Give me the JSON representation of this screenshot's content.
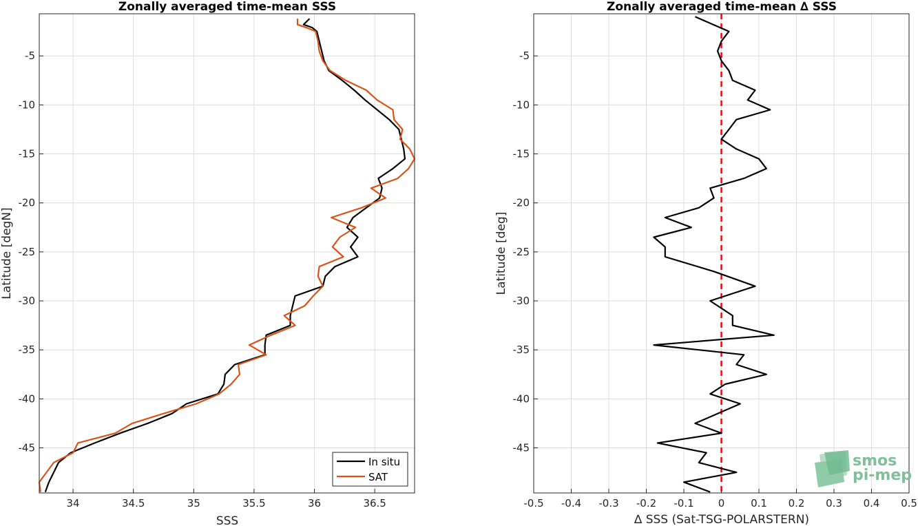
{
  "chart_data": [
    {
      "type": "line",
      "title": "Zonally averaged time-mean SSS",
      "xlabel": "SSS",
      "ylabel": "Latitude [degN]",
      "xlim": [
        33.72,
        36.83
      ],
      "ylim": [
        -49.6,
        -0.7
      ],
      "xticks": [
        "34",
        "34.5",
        "35",
        "35.5",
        "36",
        "36.5"
      ],
      "yticks": [
        "-5",
        "-10",
        "-15",
        "-20",
        "-25",
        "-30",
        "-35",
        "-40",
        "-45"
      ],
      "grid": true,
      "legend_position": "bottom-right",
      "series": [
        {
          "name": "In situ",
          "color": "#000000",
          "points": [
            [
              35.96,
              -1.2
            ],
            [
              35.91,
              -1.8
            ],
            [
              35.98,
              -2.1
            ],
            [
              36.02,
              -2.5
            ],
            [
              36.04,
              -3.5
            ],
            [
              36.06,
              -4.5
            ],
            [
              36.08,
              -5.5
            ],
            [
              36.12,
              -6.5
            ],
            [
              36.23,
              -7.5
            ],
            [
              36.33,
              -8.5
            ],
            [
              36.42,
              -9.5
            ],
            [
              36.52,
              -10.5
            ],
            [
              36.62,
              -11.5
            ],
            [
              36.7,
              -12.5
            ],
            [
              36.72,
              -13.5
            ],
            [
              36.74,
              -14.5
            ],
            [
              36.75,
              -15.5
            ],
            [
              36.65,
              -16.5
            ],
            [
              36.53,
              -17.5
            ],
            [
              36.56,
              -18.5
            ],
            [
              36.54,
              -19.5
            ],
            [
              36.43,
              -20.5
            ],
            [
              36.32,
              -21.5
            ],
            [
              36.27,
              -22.5
            ],
            [
              36.36,
              -23.5
            ],
            [
              36.3,
              -24.5
            ],
            [
              36.36,
              -25.5
            ],
            [
              36.17,
              -26.5
            ],
            [
              36.09,
              -27.5
            ],
            [
              36.07,
              -28.5
            ],
            [
              35.84,
              -29.5
            ],
            [
              35.82,
              -30.5
            ],
            [
              35.8,
              -31.5
            ],
            [
              35.8,
              -32.5
            ],
            [
              35.6,
              -33.5
            ],
            [
              35.59,
              -34.5
            ],
            [
              35.59,
              -35.5
            ],
            [
              35.34,
              -36.5
            ],
            [
              35.26,
              -37.5
            ],
            [
              35.25,
              -38.5
            ],
            [
              35.2,
              -39.5
            ],
            [
              34.94,
              -40.5
            ],
            [
              34.82,
              -41.5
            ],
            [
              34.62,
              -42.5
            ],
            [
              34.39,
              -43.5
            ],
            [
              34.18,
              -44.5
            ],
            [
              33.98,
              -45.5
            ],
            [
              33.88,
              -46.5
            ],
            [
              33.84,
              -47.5
            ],
            [
              33.8,
              -48.5
            ],
            [
              33.77,
              -49.5
            ]
          ]
        },
        {
          "name": "SAT",
          "color": "#d95319",
          "points": [
            [
              35.86,
              -1.2
            ],
            [
              35.86,
              -1.8
            ],
            [
              35.93,
              -2.1
            ],
            [
              36.01,
              -2.5
            ],
            [
              36.03,
              -3.5
            ],
            [
              36.04,
              -4.5
            ],
            [
              36.07,
              -5.5
            ],
            [
              36.13,
              -6.5
            ],
            [
              36.26,
              -7.5
            ],
            [
              36.43,
              -8.5
            ],
            [
              36.52,
              -9.5
            ],
            [
              36.65,
              -10.5
            ],
            [
              36.66,
              -11.5
            ],
            [
              36.73,
              -12.5
            ],
            [
              36.71,
              -13.5
            ],
            [
              36.79,
              -14.5
            ],
            [
              36.83,
              -15.5
            ],
            [
              36.78,
              -16.5
            ],
            [
              36.69,
              -17.5
            ],
            [
              36.47,
              -18.5
            ],
            [
              36.59,
              -19.5
            ],
            [
              36.39,
              -20.5
            ],
            [
              36.14,
              -21.5
            ],
            [
              36.34,
              -22.5
            ],
            [
              36.21,
              -23.5
            ],
            [
              36.15,
              -24.5
            ],
            [
              36.24,
              -25.5
            ],
            [
              36.04,
              -26.5
            ],
            [
              36.03,
              -27.5
            ],
            [
              36.07,
              -28.5
            ],
            [
              35.99,
              -29.5
            ],
            [
              35.92,
              -30.5
            ],
            [
              35.75,
              -31.5
            ],
            [
              35.84,
              -32.5
            ],
            [
              35.64,
              -33.5
            ],
            [
              35.46,
              -34.5
            ],
            [
              35.6,
              -35.5
            ],
            [
              35.37,
              -36.5
            ],
            [
              35.38,
              -37.5
            ],
            [
              35.31,
              -38.5
            ],
            [
              35.21,
              -39.5
            ],
            [
              35.02,
              -40.5
            ],
            [
              34.75,
              -41.5
            ],
            [
              34.49,
              -42.5
            ],
            [
              34.35,
              -43.5
            ],
            [
              34.04,
              -44.5
            ],
            [
              34.0,
              -45.5
            ],
            [
              33.84,
              -46.5
            ],
            [
              33.78,
              -47.5
            ],
            [
              33.72,
              -48.5
            ],
            [
              33.73,
              -49.5
            ]
          ]
        }
      ]
    },
    {
      "type": "line",
      "title": "Zonally averaged time-mean ∆ SSS",
      "xlabel": "∆ SSS (Sat-TSG-POLARSTERN)",
      "ylabel": "Latitude [deg]",
      "xlim": [
        -0.5,
        0.5
      ],
      "ylim": [
        -49.6,
        -0.7
      ],
      "xticks": [
        "-0.5",
        "-0.4",
        "-0.3",
        "-0.2",
        "-0.1",
        "0",
        "0.1",
        "0.2",
        "0.3",
        "0.4",
        "0.5"
      ],
      "yticks": [
        "-5",
        "-10",
        "-15",
        "-20",
        "-25",
        "-30",
        "-35",
        "-40",
        "-45"
      ],
      "grid": true,
      "reference_line": {
        "x": 0,
        "color": "#e8000b",
        "style": "dashed"
      },
      "series": [
        {
          "color": "#000000",
          "points": [
            [
              -0.07,
              -1.0
            ],
            [
              -0.01,
              -2.0
            ],
            [
              0.02,
              -2.5
            ],
            [
              0.0,
              -3.5
            ],
            [
              -0.01,
              -4.5
            ],
            [
              0.0,
              -5.5
            ],
            [
              0.02,
              -6.5
            ],
            [
              0.03,
              -7.5
            ],
            [
              0.09,
              -8.5
            ],
            [
              0.07,
              -9.5
            ],
            [
              0.13,
              -10.5
            ],
            [
              0.04,
              -11.5
            ],
            [
              0.02,
              -12.5
            ],
            [
              0.0,
              -13.5
            ],
            [
              0.04,
              -14.5
            ],
            [
              0.1,
              -15.5
            ],
            [
              0.12,
              -16.5
            ],
            [
              0.06,
              -17.5
            ],
            [
              -0.03,
              -18.5
            ],
            [
              -0.02,
              -19.5
            ],
            [
              -0.06,
              -20.5
            ],
            [
              -0.15,
              -21.5
            ],
            [
              -0.08,
              -22.5
            ],
            [
              -0.18,
              -23.5
            ],
            [
              -0.15,
              -24.5
            ],
            [
              -0.15,
              -25.5
            ],
            [
              -0.02,
              -27.0
            ],
            [
              0.09,
              -28.5
            ],
            [
              -0.03,
              -30.0
            ],
            [
              0.03,
              -31.5
            ],
            [
              0.03,
              -32.5
            ],
            [
              0.14,
              -33.5
            ],
            [
              -0.18,
              -34.5
            ],
            [
              0.06,
              -35.5
            ],
            [
              0.04,
              -36.5
            ],
            [
              0.12,
              -37.5
            ],
            [
              0.01,
              -38.5
            ],
            [
              -0.03,
              -39.5
            ],
            [
              0.05,
              -40.5
            ],
            [
              -0.07,
              -42.5
            ],
            [
              0.0,
              -43.5
            ],
            [
              -0.17,
              -44.5
            ],
            [
              -0.04,
              -45.5
            ],
            [
              -0.06,
              -46.5
            ],
            [
              0.04,
              -47.5
            ],
            [
              -0.1,
              -48.5
            ],
            [
              -0.03,
              -49.5
            ]
          ]
        }
      ]
    }
  ],
  "legend": {
    "items": [
      {
        "label": "In situ",
        "color": "#000000"
      },
      {
        "label": "SAT",
        "color": "#d95319"
      }
    ]
  },
  "logo": {
    "line1": "smos",
    "line2": "pi-mep"
  }
}
